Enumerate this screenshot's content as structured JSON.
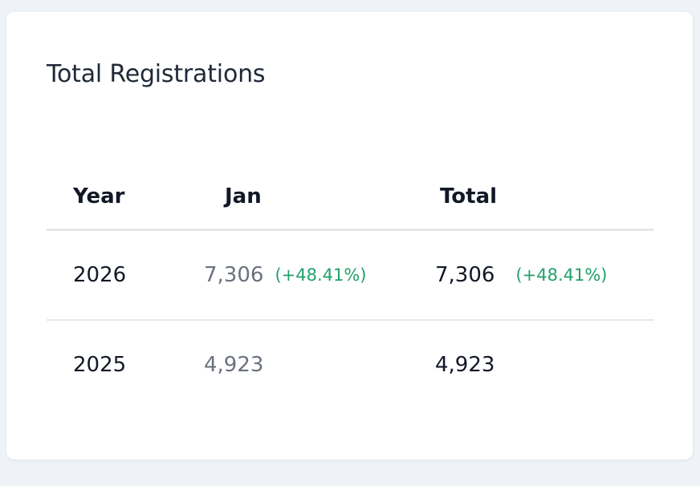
{
  "card": {
    "title": "Total Registrations"
  },
  "table": {
    "headers": {
      "year": "Year",
      "jan": "Jan",
      "total": "Total"
    },
    "rows": [
      {
        "year": "2026",
        "jan": "7,306",
        "jan_change": "(+48.41%)",
        "total": "7,306",
        "total_change": "(+48.41%)"
      },
      {
        "year": "2025",
        "jan": "4,923",
        "total": "4,923"
      }
    ]
  },
  "colors": {
    "positive_change": "#22a06b",
    "muted_value": "#6b7280",
    "primary_text": "#111827"
  }
}
